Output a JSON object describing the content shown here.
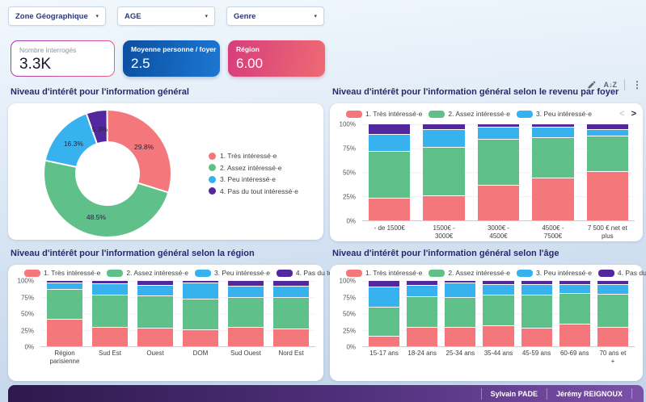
{
  "filters": [
    {
      "label": "Zone Géographique"
    },
    {
      "label": "AGE"
    },
    {
      "label": "Genre"
    }
  ],
  "kpis": [
    {
      "label": "Nombre interrogés",
      "value": "3.3K"
    },
    {
      "label": "Moyenne personne / foyer",
      "value": "2.5"
    },
    {
      "label": "Région",
      "value": "6.00"
    }
  ],
  "icons": {
    "caret_down": "▾",
    "sort": "A↓Z",
    "more_vert": "⋮",
    "legend_prev": "<",
    "legend_next": ">"
  },
  "colors": {
    "series": [
      "#F4777B",
      "#5FC08A",
      "#38B2EF",
      "#53289E"
    ],
    "kpi_blue": [
      "#0b4fa0",
      "#1c77d2"
    ],
    "kpi_pink": [
      "#d63d7c",
      "#ee6a73"
    ],
    "title_text": "#262a6d",
    "footer_gradient": [
      "#2d194c",
      "#7c50a8"
    ]
  },
  "series_labels": [
    "1. Très intéressé·e",
    "2. Assez intéressé·e",
    "3. Peu intéressé·e",
    "4. Pas du tout intéressé·e"
  ],
  "chart_data": [
    {
      "id": "interest-general",
      "type": "pie",
      "title": "Niveau d'intérêt pour l'information général",
      "labels": [
        "1. Très intéressé·e",
        "2. Assez intéressé·e",
        "3. Peu intéressé·e",
        "4. Pas du tout intéressé·e"
      ],
      "values": [
        29.8,
        48.5,
        16.3,
        5.3
      ],
      "unit": "%",
      "donut": true,
      "legend_position": "right"
    },
    {
      "id": "interest-by-income",
      "type": "bar",
      "stacked": true,
      "percent": true,
      "title": "Niveau d'intérêt pour l'information général selon le revenu par foyer",
      "categories": [
        "- de 1500€",
        "1500€ - 3000€",
        "3000€ - 4500€",
        "4500€ - 7500€",
        "7 500 € net et plus"
      ],
      "series": [
        {
          "name": "1. Très intéressé·e",
          "values": [
            23,
            26,
            37,
            45,
            52
          ]
        },
        {
          "name": "2. Assez intéressé·e",
          "values": [
            49,
            51,
            48,
            42,
            37
          ]
        },
        {
          "name": "3. Peu intéressé·e",
          "values": [
            18,
            18,
            12,
            10,
            6
          ]
        },
        {
          "name": "4. Pas du tout intéressé·e",
          "values": [
            10,
            5,
            3,
            3,
            5
          ]
        }
      ],
      "yticks": [
        "100%",
        "75%",
        "50%",
        "25%",
        "0%"
      ],
      "ylim": [
        0,
        100
      ],
      "grid": true,
      "legend_position": "top",
      "legend_visible_items": 3,
      "legend_pagination": true
    },
    {
      "id": "interest-by-region",
      "type": "bar",
      "stacked": true,
      "percent": true,
      "title": "Niveau d'intérêt pour l'information général selon la région",
      "categories": [
        "Région parisienne",
        "Sud Est",
        "Ouest",
        "DOM",
        "Sud Ouest",
        "Nord Est"
      ],
      "series": [
        {
          "name": "1. Très intéressé·e",
          "values": [
            42,
            30,
            28,
            26,
            29,
            27
          ]
        },
        {
          "name": "2. Assez intéressé·e",
          "values": [
            46,
            50,
            50,
            47,
            46,
            49
          ]
        },
        {
          "name": "3. Peu intéressé·e",
          "values": [
            9,
            16,
            16,
            25,
            17,
            16
          ]
        },
        {
          "name": "4. Pas du tout intéressé·e",
          "values": [
            3,
            4,
            6,
            2,
            8,
            8
          ]
        }
      ],
      "yticks": [
        "100%",
        "75%",
        "50%",
        "25%",
        "0%"
      ],
      "ylim": [
        0,
        100
      ],
      "grid": true,
      "legend_position": "top",
      "legend_visible_items": 4,
      "legend_pagination": false
    },
    {
      "id": "interest-by-age",
      "type": "bar",
      "stacked": true,
      "percent": true,
      "title": "Niveau d'intérêt pour l'information général selon l'âge",
      "categories": [
        "15-17 ans",
        "18-24 ans",
        "25-34 ans",
        "35-44 ans",
        "45-59 ans",
        "60-69 ans",
        "70 ans et +"
      ],
      "series": [
        {
          "name": "1. Très intéressé·e",
          "values": [
            16,
            29,
            30,
            32,
            28,
            34,
            29
          ]
        },
        {
          "name": "2. Assez intéressé·e",
          "values": [
            44,
            48,
            46,
            47,
            51,
            48,
            52
          ]
        },
        {
          "name": "3. Peu intéressé·e",
          "values": [
            31,
            17,
            21,
            16,
            16,
            13,
            14
          ]
        },
        {
          "name": "4. Pas du tout intéressé·e",
          "values": [
            9,
            6,
            3,
            5,
            5,
            5,
            5
          ]
        }
      ],
      "yticks": [
        "100%",
        "75%",
        "50%",
        "25%",
        "0%"
      ],
      "ylim": [
        0,
        100
      ],
      "grid": true,
      "legend_position": "top",
      "legend_visible_items": 4,
      "legend_pagination": false
    }
  ],
  "footer": {
    "names": [
      "Sylvain PADE",
      "Jérémy REIGNOUX"
    ]
  }
}
